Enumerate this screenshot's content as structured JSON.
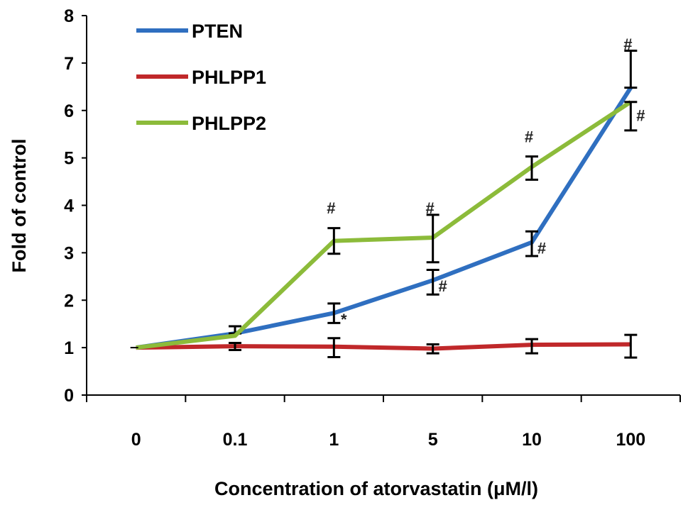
{
  "chart_data": {
    "type": "line",
    "title": "",
    "xlabel": "Concentration of atorvastatin (μM/l)",
    "ylabel": "Fold of control",
    "categories": [
      "0",
      "0.1",
      "1",
      "5",
      "10",
      "100"
    ],
    "ylim": [
      0,
      8
    ],
    "yticks": [
      "0",
      "1",
      "2",
      "3",
      "4",
      "5",
      "6",
      "7",
      "8"
    ],
    "grid": false,
    "legend": "top-left",
    "series": [
      {
        "name": "PTEN",
        "color": "#2f6fc0",
        "values": [
          1.0,
          1.3,
          1.73,
          2.42,
          3.22,
          6.48
        ],
        "error_bars": [
          null,
          [
            1.3,
            1.45
          ],
          [
            1.52,
            1.93
          ],
          [
            2.12,
            2.64
          ],
          [
            2.93,
            3.45
          ],
          [
            6.48,
            7.26
          ]
        ]
      },
      {
        "name": "PHLPP1",
        "color": "#c0282a",
        "values": [
          1.0,
          1.03,
          1.02,
          0.98,
          1.06,
          1.07
        ],
        "error_bars": [
          null,
          [
            0.95,
            1.1
          ],
          [
            0.8,
            1.2
          ],
          [
            0.88,
            1.07
          ],
          [
            0.88,
            1.18
          ],
          [
            0.79,
            1.27
          ]
        ]
      },
      {
        "name": "PHLPP2",
        "color": "#8cbb3a",
        "values": [
          1.0,
          1.25,
          3.25,
          3.32,
          4.81,
          6.18
        ],
        "error_bars": [
          null,
          null,
          [
            2.98,
            3.52
          ],
          [
            2.8,
            3.8
          ],
          [
            4.54,
            5.03
          ],
          [
            5.58,
            6.18
          ]
        ]
      }
    ],
    "annotations": [
      {
        "text": "#",
        "category": "1",
        "y": 3.95,
        "side": "left"
      },
      {
        "text": "*",
        "category": "1",
        "y": 1.6,
        "side": "right"
      },
      {
        "text": "#",
        "category": "5",
        "y": 3.95,
        "side": "left"
      },
      {
        "text": "#",
        "category": "5",
        "y": 2.3,
        "side": "right"
      },
      {
        "text": "#",
        "category": "10",
        "y": 5.45,
        "side": "left"
      },
      {
        "text": "#",
        "category": "10",
        "y": 3.1,
        "side": "right"
      },
      {
        "text": "#",
        "category": "100",
        "y": 7.4,
        "side": "left"
      },
      {
        "text": "#",
        "category": "100",
        "y": 5.9,
        "side": "right"
      }
    ]
  }
}
